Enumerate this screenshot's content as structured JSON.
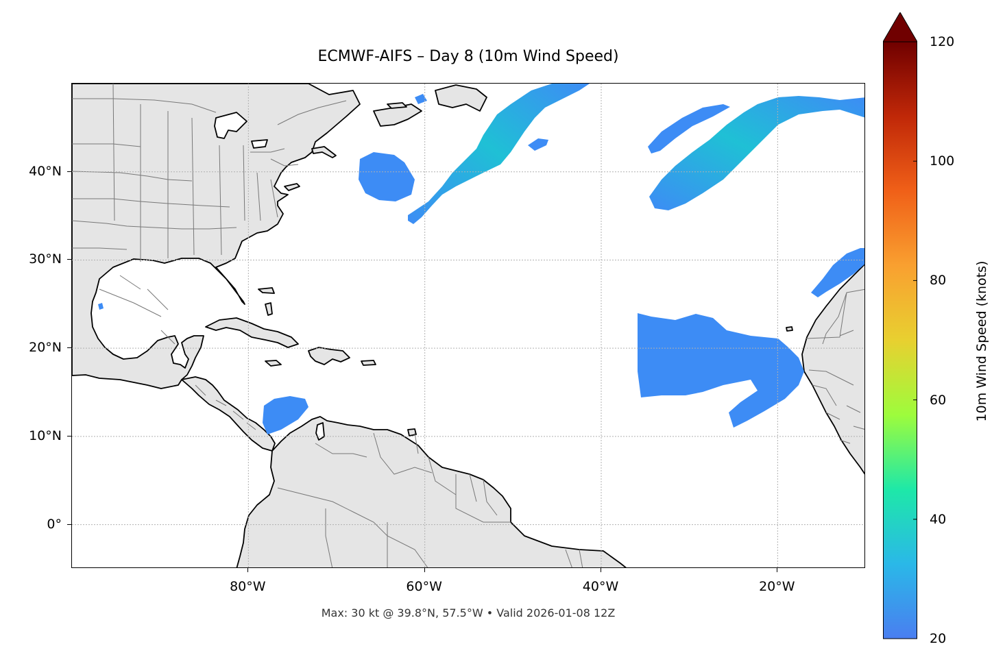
{
  "title": "ECMWF-AIFS – Day 8 (10m Wind Speed)",
  "footer": "Max: 30 kt @ 39.8°N, 57.5°W • Valid 2026-01-08 12Z",
  "map": {
    "extent": {
      "lon_min": -100,
      "lon_max": -10,
      "lat_min": -5,
      "lat_max": 50
    },
    "lon_ticks": [
      {
        "value": -80,
        "label": "80°W"
      },
      {
        "value": -60,
        "label": "60°W"
      },
      {
        "value": -40,
        "label": "40°W"
      },
      {
        "value": -20,
        "label": "20°W"
      }
    ],
    "lat_ticks": [
      {
        "value": 40,
        "label": "40°N"
      },
      {
        "value": 30,
        "label": "30°N"
      },
      {
        "value": 20,
        "label": "20°N"
      },
      {
        "value": 10,
        "label": "10°N"
      },
      {
        "value": 0,
        "label": "0°"
      }
    ],
    "gridlines": true,
    "land_color": "#e5e5e5",
    "coast_color": "#000000",
    "border_color": "#777777",
    "wind_fill_color": "#3d8cf5",
    "wind_core_color": "#1fc0d5"
  },
  "colorbar": {
    "label": "10m Wind Speed (knots)",
    "min": 20,
    "max": 120,
    "extend": "max",
    "ticks": [
      {
        "value": 20,
        "label": "20"
      },
      {
        "value": 40,
        "label": "40"
      },
      {
        "value": 60,
        "label": "60"
      },
      {
        "value": 80,
        "label": "80"
      },
      {
        "value": 100,
        "label": "100"
      },
      {
        "value": 120,
        "label": "120"
      }
    ],
    "stops": [
      "#4a7ef0",
      "#2ab8e8",
      "#1ee8a8",
      "#9efc3c",
      "#e8d030",
      "#f9a030",
      "#f06018",
      "#c02808",
      "#700000"
    ]
  }
}
